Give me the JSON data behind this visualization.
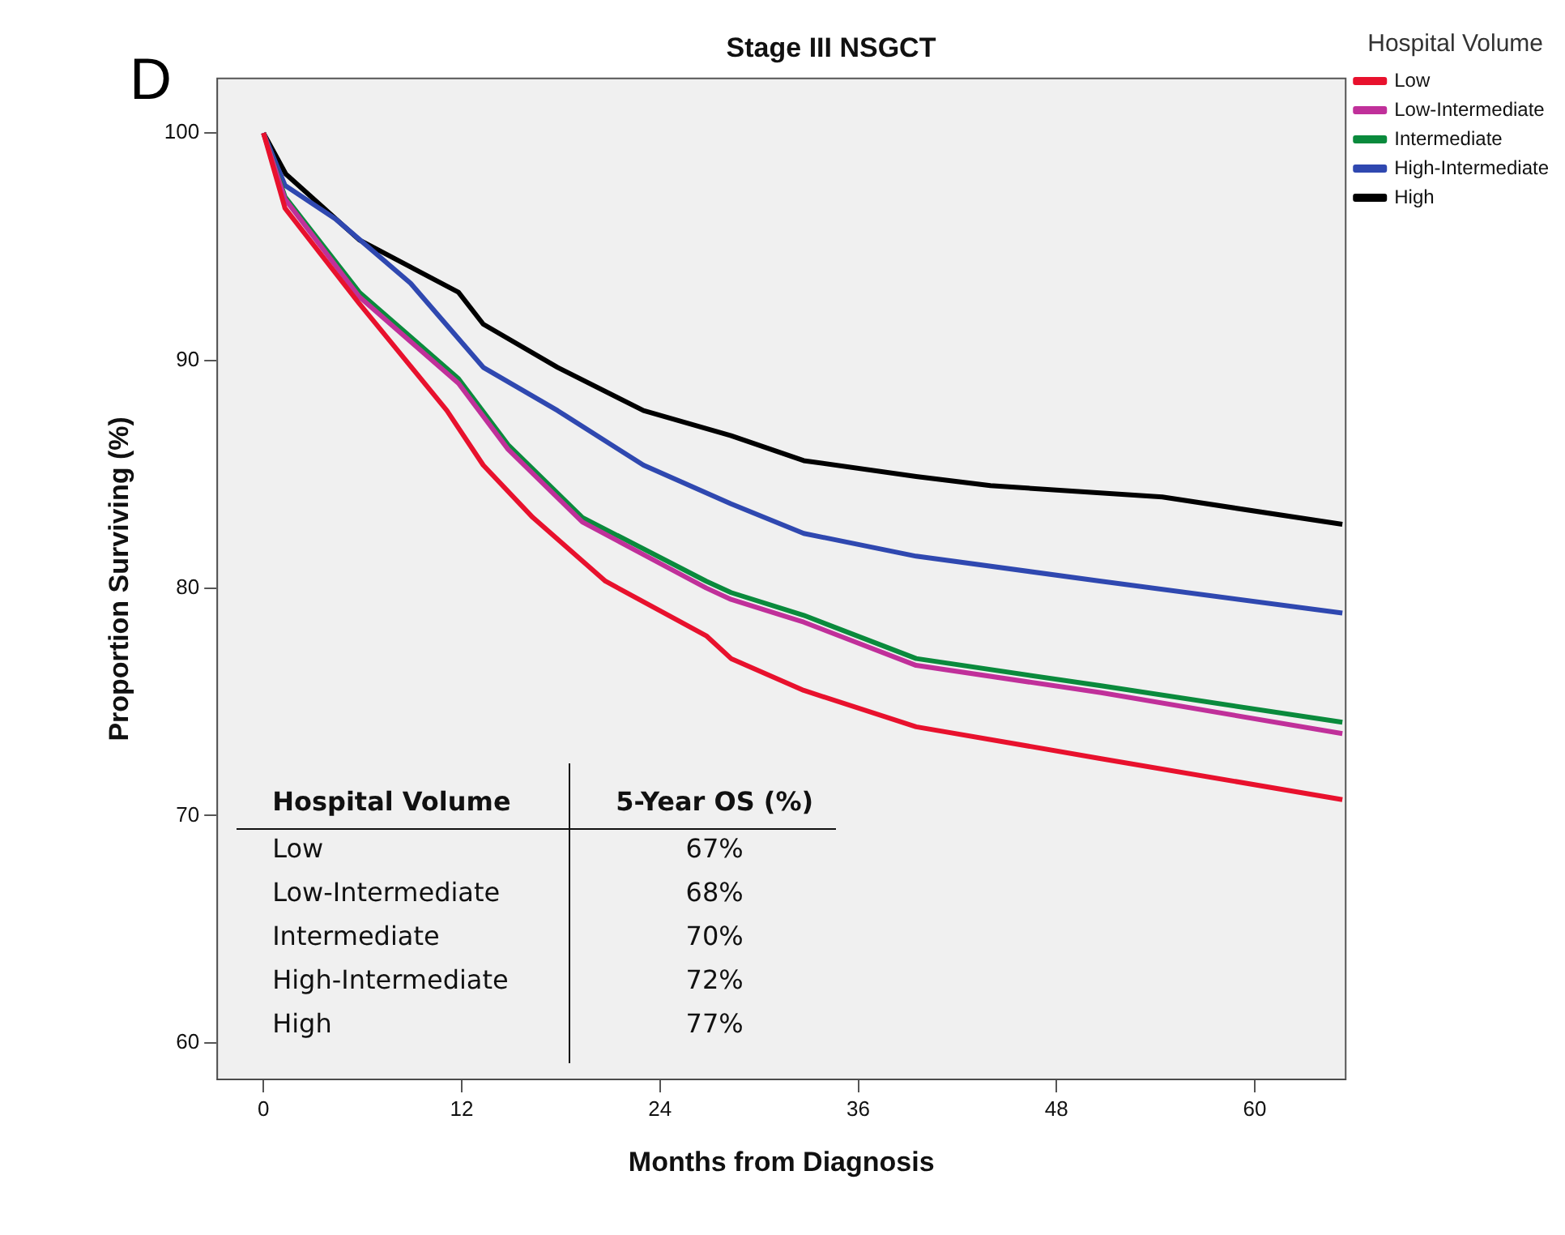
{
  "chart_data": {
    "type": "line",
    "title": "Stage III NSGCT",
    "xlabel": "Months from Diagnosis",
    "ylabel": "Proportion Surviving (%)",
    "legend_title": "Hospital Volume",
    "xlim": [
      -2.8,
      65.5
    ],
    "xticks": [
      0,
      12,
      24,
      36,
      48,
      60
    ],
    "ylim": [
      58.4,
      102.4
    ],
    "yticks": [
      60,
      70,
      80,
      90,
      100
    ],
    "grid": false,
    "legend": "right",
    "marker": "none",
    "line_style": "solid",
    "series": [
      {
        "name": "Low",
        "color": "#e8112d",
        "x": [
          0,
          1.3,
          5.8,
          11.1,
          13.3,
          16.3,
          20.7,
          26.8,
          28.3,
          32.7,
          39.5,
          50.7,
          65.3
        ],
        "values": [
          100,
          96.7,
          92.5,
          87.8,
          85.4,
          83.1,
          80.3,
          77.9,
          76.9,
          75.5,
          73.9,
          72.5,
          70.7
        ]
      },
      {
        "name": "Low-Intermediate",
        "color": "#c0309a",
        "x": [
          0,
          1.3,
          5.8,
          11.8,
          14.8,
          19.3,
          26.8,
          28.3,
          32.7,
          39.5,
          50.7,
          65.3
        ],
        "values": [
          100,
          97.1,
          92.8,
          89.0,
          86.1,
          82.9,
          80.0,
          79.5,
          78.5,
          76.6,
          75.4,
          73.6
        ]
      },
      {
        "name": "Intermediate",
        "color": "#0a8a3c",
        "x": [
          0,
          1.3,
          5.8,
          11.8,
          14.8,
          19.3,
          26.8,
          28.3,
          32.7,
          39.5,
          50.7,
          65.3
        ],
        "values": [
          100,
          97.2,
          93.0,
          89.2,
          86.3,
          83.1,
          80.3,
          79.8,
          78.8,
          76.9,
          75.7,
          74.1
        ]
      },
      {
        "name": "High-Intermediate",
        "color": "#2f48b0",
        "x": [
          0,
          1.3,
          4.4,
          8.9,
          13.3,
          17.8,
          23,
          28.3,
          32.7,
          39.5,
          50.7,
          65.3
        ],
        "values": [
          100,
          97.7,
          96.2,
          93.4,
          89.7,
          87.8,
          85.4,
          83.7,
          82.4,
          81.4,
          80.3,
          78.9
        ]
      },
      {
        "name": "High",
        "color": "#000000",
        "x": [
          0,
          1.35,
          5.8,
          11.8,
          13.3,
          17.8,
          23,
          28.3,
          32.7,
          39.5,
          44,
          54.4,
          65.3
        ],
        "values": [
          100,
          98.2,
          95.3,
          93.0,
          91.6,
          89.7,
          87.8,
          86.7,
          85.6,
          84.9,
          84.5,
          84.0,
          82.8
        ]
      }
    ],
    "annotations": [
      "D",
      "Hospital Volume",
      "5-Year OS (%)",
      "Low",
      "67%",
      "Low-Intermediate",
      "68%",
      "Intermediate",
      "70%",
      "High-Intermediate",
      "72%",
      "High",
      "77%"
    ]
  }
}
